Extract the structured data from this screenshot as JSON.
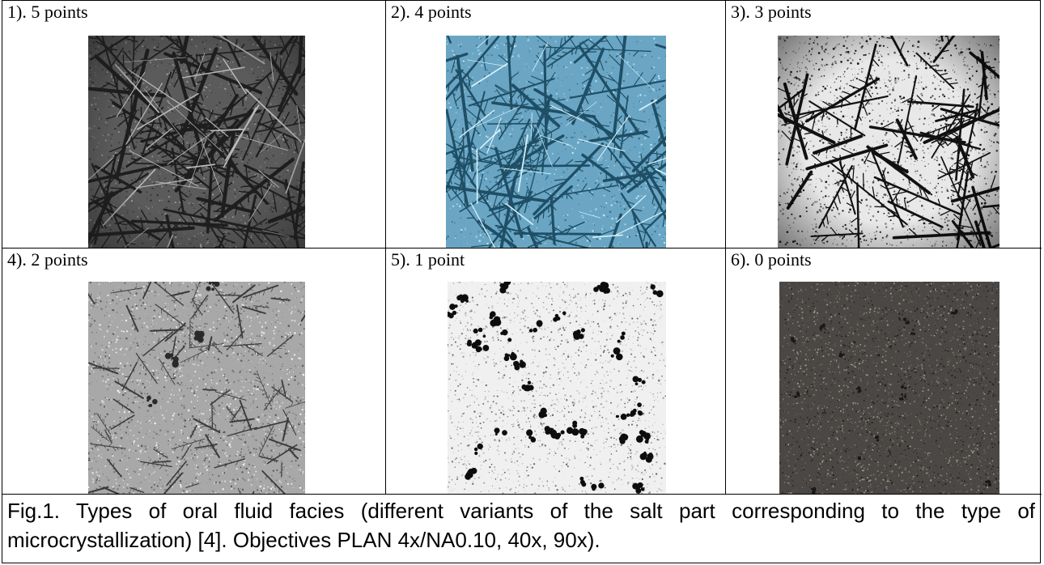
{
  "panels": [
    {
      "label": "1). 5 points",
      "tone": "#5b5b5b"
    },
    {
      "label": "2). 4 points",
      "tone": "#6aa6c4"
    },
    {
      "label": "3). 3 points",
      "tone": "#e8e8e8"
    },
    {
      "label": "4). 2 points",
      "tone": "#a8a8a8"
    },
    {
      "label": "5). 1 point",
      "tone": "#f0f0f0"
    },
    {
      "label": "6). 0 points",
      "tone": "#4a4744"
    }
  ],
  "caption": "Fig.1. Types of oral fluid facies (different variants of the salt part corresponding to the type of microcrystallization) [4]. Objectives PLAN 4x/NA0.10, 40x, 90x)."
}
